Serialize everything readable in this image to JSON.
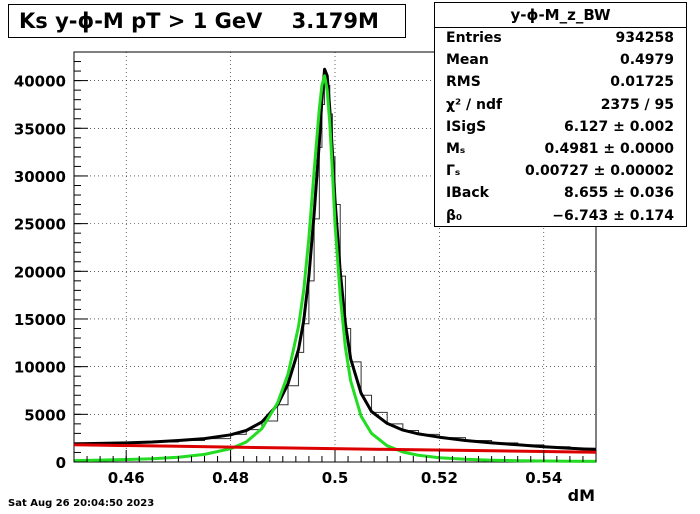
{
  "title": "Ks y-ϕ-M pT > 1 GeV    3.179M",
  "timestamp": "Sat Aug 26 20:04:50 2023",
  "stats": {
    "name": "y-ϕ-M_z_BW",
    "rows": [
      {
        "key": "Entries",
        "value": "934258"
      },
      {
        "key": "Mean",
        "value": "0.4979"
      },
      {
        "key": "RMS",
        "value": "0.01725"
      },
      {
        "key": "χ² / ndf",
        "value": "2375 / 95"
      },
      {
        "key": "ISigS",
        "value": "6.127 ± 0.002"
      },
      {
        "key": "Mₛ",
        "value": "0.4981 ± 0.0000"
      },
      {
        "key": "Γₛ",
        "value": "0.00727 ± 0.00002"
      },
      {
        "key": "IBack",
        "value": "8.655 ± 0.036"
      },
      {
        "key": "β₀",
        "value": "−6.743 ± 0.174"
      }
    ]
  },
  "chart_data": {
    "type": "line",
    "title": "Ks y-ϕ-M pT > 1 GeV    3.179M",
    "xlabel": "dM",
    "ylabel": "",
    "xlim": [
      0.45,
      0.55
    ],
    "ylim": [
      0,
      43000
    ],
    "xticks": [
      "0.46",
      "0.48",
      "0.5",
      "0.52",
      "0.54"
    ],
    "xtick_values": [
      0.46,
      0.48,
      0.5,
      0.52,
      0.54
    ],
    "yticks": [
      "0",
      "5000",
      "10000",
      "15000",
      "20000",
      "25000",
      "30000",
      "35000",
      "40000"
    ],
    "ytick_values": [
      0,
      5000,
      10000,
      15000,
      20000,
      25000,
      30000,
      35000,
      40000
    ],
    "grid": true,
    "histogram": {
      "x": [
        0.45,
        0.455,
        0.46,
        0.465,
        0.47,
        0.475,
        0.48,
        0.483,
        0.486,
        0.489,
        0.491,
        0.493,
        0.494,
        0.495,
        0.496,
        0.497,
        0.4975,
        0.498,
        0.4985,
        0.499,
        0.4995,
        0.5,
        0.501,
        0.502,
        0.503,
        0.505,
        0.507,
        0.51,
        0.513,
        0.516,
        0.52,
        0.525,
        0.53,
        0.535,
        0.54,
        0.545,
        0.55
      ],
      "y": [
        1900,
        1950,
        2000,
        2100,
        2250,
        2450,
        2900,
        3400,
        4300,
        6000,
        8000,
        11500,
        14500,
        19000,
        25500,
        33000,
        37500,
        40500,
        39500,
        36500,
        32000,
        27000,
        19500,
        14000,
        10500,
        7000,
        5200,
        4000,
        3300,
        2900,
        2550,
        2250,
        2000,
        1800,
        1600,
        1450,
        1300
      ]
    },
    "series": [
      {
        "name": "",
        "color": "#000000",
        "x": [
          0.45,
          0.455,
          0.46,
          0.465,
          0.47,
          0.475,
          0.48,
          0.483,
          0.486,
          0.489,
          0.491,
          0.493,
          0.494,
          0.495,
          0.496,
          0.497,
          0.4975,
          0.498,
          0.4985,
          0.499,
          0.4995,
          0.5,
          0.501,
          0.502,
          0.503,
          0.505,
          0.507,
          0.51,
          0.513,
          0.516,
          0.52,
          0.525,
          0.53,
          0.535,
          0.54,
          0.545,
          0.55
        ],
        "y": [
          1900,
          1950,
          2000,
          2100,
          2250,
          2450,
          2850,
          3300,
          4200,
          6000,
          8200,
          11800,
          14800,
          19500,
          26000,
          33500,
          38000,
          41200,
          40500,
          37000,
          32500,
          27500,
          20000,
          14500,
          10800,
          7200,
          5300,
          4050,
          3350,
          2950,
          2600,
          2250,
          2000,
          1800,
          1600,
          1450,
          1300
        ]
      },
      {
        "name": "",
        "color": "#22dd22",
        "x": [
          0.45,
          0.455,
          0.46,
          0.465,
          0.47,
          0.475,
          0.48,
          0.483,
          0.486,
          0.489,
          0.491,
          0.493,
          0.494,
          0.495,
          0.496,
          0.497,
          0.4975,
          0.498,
          0.4985,
          0.499,
          0.4995,
          0.5,
          0.501,
          0.502,
          0.503,
          0.505,
          0.507,
          0.51,
          0.513,
          0.516,
          0.52,
          0.525,
          0.53,
          0.535,
          0.54,
          0.545,
          0.55
        ],
        "y": [
          150,
          200,
          260,
          350,
          500,
          800,
          1400,
          2100,
          3500,
          6200,
          9200,
          14200,
          18000,
          23500,
          30500,
          37000,
          39500,
          40500,
          39000,
          35500,
          30500,
          25000,
          17500,
          12000,
          8500,
          4800,
          3000,
          1700,
          1050,
          700,
          450,
          280,
          190,
          140,
          100,
          80,
          60
        ]
      },
      {
        "name": "",
        "color": "#dd0000",
        "x": [
          0.45,
          0.47,
          0.49,
          0.51,
          0.53,
          0.55
        ],
        "y": [
          1800,
          1650,
          1480,
          1320,
          1170,
          1020
        ]
      }
    ]
  }
}
